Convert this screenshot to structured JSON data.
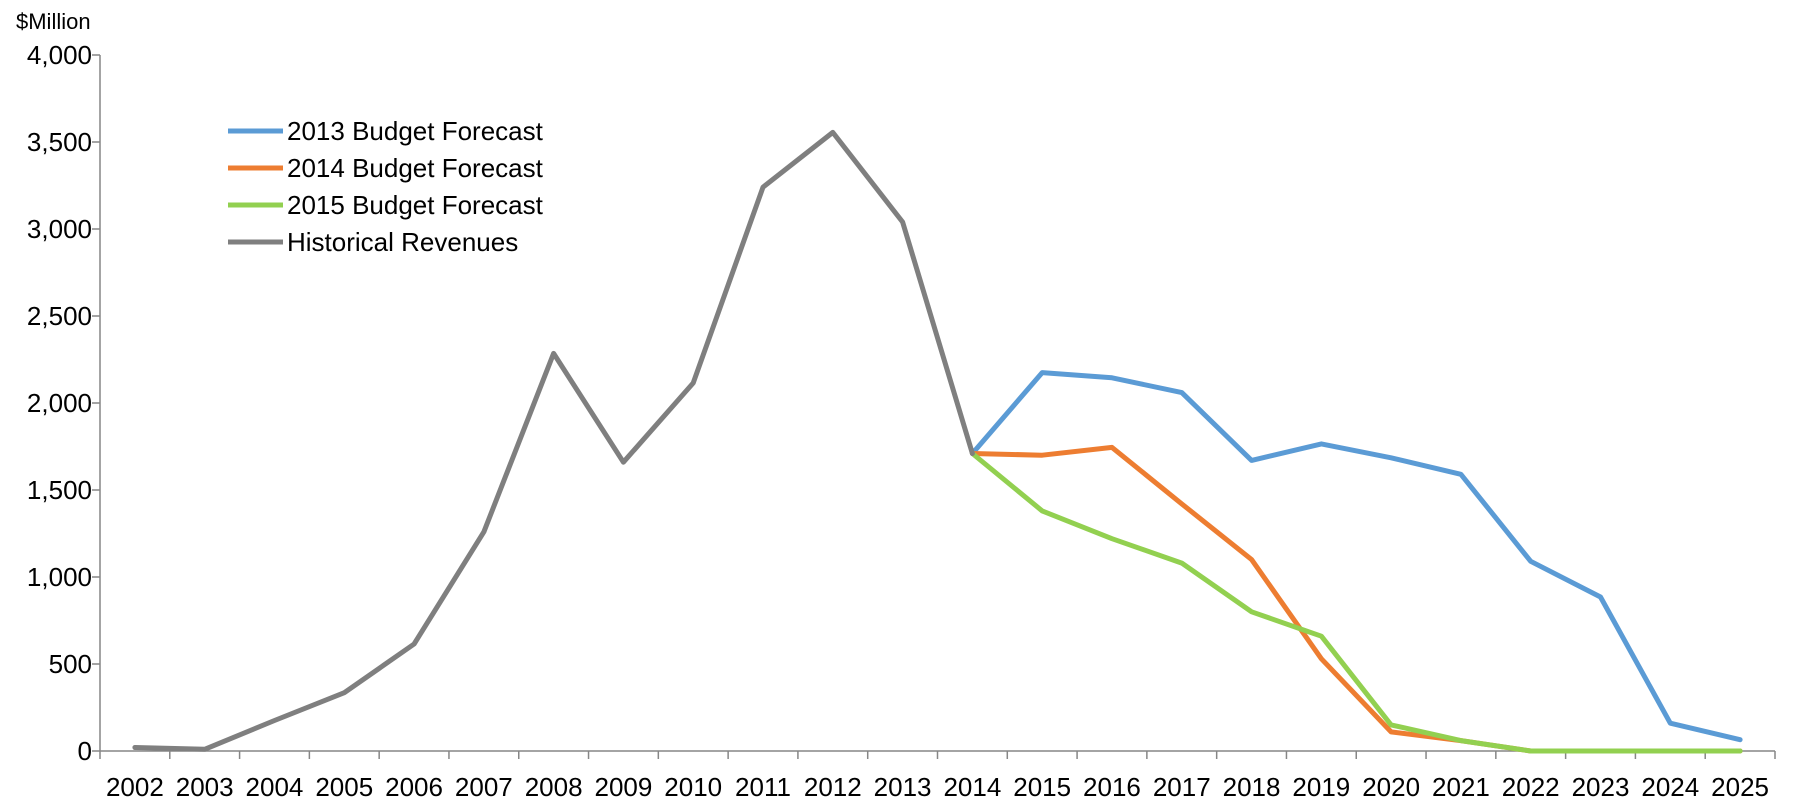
{
  "chart_data": {
    "type": "line",
    "ylabel": "$Million",
    "ylim": [
      0,
      4000
    ],
    "yticks": [
      0,
      500,
      1000,
      1500,
      2000,
      2500,
      3000,
      3500,
      4000
    ],
    "ytick_labels": [
      "0",
      "500",
      "1,000",
      "1,500",
      "2,000",
      "2,500",
      "3,000",
      "3,500",
      "4,000"
    ],
    "x": [
      "2002",
      "2003",
      "2004",
      "2005",
      "2006",
      "2007",
      "2008",
      "2009",
      "2010",
      "2011",
      "2012",
      "2013",
      "2014",
      "2015",
      "2016",
      "2017",
      "2018",
      "2019",
      "2020",
      "2021",
      "2022",
      "2023",
      "2024",
      "2025"
    ],
    "grid": false,
    "legend_position": "top-left",
    "series": [
      {
        "name": "2013 Budget Forecast",
        "color": "#5b9bd5",
        "values": [
          null,
          null,
          null,
          null,
          null,
          null,
          null,
          null,
          null,
          null,
          null,
          null,
          1710,
          2175,
          2145,
          2060,
          1670,
          1765,
          1685,
          1590,
          1090,
          885,
          160,
          65
        ]
      },
      {
        "name": "2014 Budget Forecast",
        "color": "#ed7d31",
        "values": [
          null,
          null,
          null,
          null,
          null,
          null,
          null,
          null,
          null,
          null,
          null,
          null,
          1710,
          1700,
          1745,
          1420,
          1100,
          530,
          110,
          60,
          0,
          0,
          0,
          0
        ]
      },
      {
        "name": "2015 Budget Forecast",
        "color": "#92d050",
        "values": [
          null,
          null,
          null,
          null,
          null,
          null,
          null,
          null,
          null,
          null,
          null,
          null,
          1710,
          1380,
          1220,
          1080,
          800,
          660,
          150,
          60,
          0,
          0,
          0,
          0
        ]
      },
      {
        "name": "Historical Revenues",
        "color": "#7f7f7f",
        "values": [
          20,
          10,
          175,
          335,
          615,
          1260,
          2285,
          1660,
          2115,
          3240,
          3555,
          3040,
          1710,
          null,
          null,
          null,
          null,
          null,
          null,
          null,
          null,
          null,
          null,
          null
        ]
      }
    ]
  }
}
